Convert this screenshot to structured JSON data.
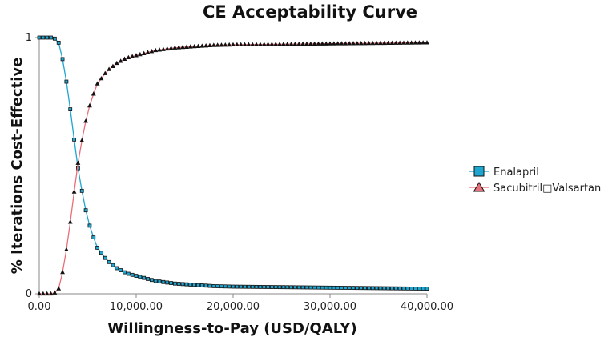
{
  "chart_data": {
    "type": "line",
    "title": "CE Acceptability Curve",
    "xlabel": "Willingness-to-Pay (USD/QALY)",
    "ylabel": "% Iterations Cost-Effective",
    "xlim": [
      0,
      40000
    ],
    "ylim": [
      0,
      1
    ],
    "x_ticks": [
      0,
      10000,
      20000,
      30000,
      40000
    ],
    "x_tick_labels": [
      "0.00",
      "10,000.00",
      "20,000.00",
      "30,000.00",
      "40,000.00"
    ],
    "y_ticks": [
      0,
      1
    ],
    "y_tick_labels": [
      "0",
      "1"
    ],
    "grid": false,
    "legend_position": "right",
    "series": [
      {
        "name": "Enalapril",
        "color": "#1fa6d0",
        "marker": "square",
        "x": [
          0,
          500,
          1000,
          1500,
          2000,
          2500,
          3000,
          3500,
          4000,
          4500,
          5000,
          5500,
          6000,
          7000,
          8000,
          9000,
          10000,
          12000,
          14000,
          16000,
          18000,
          20000,
          25000,
          30000,
          35000,
          40000
        ],
        "y": [
          1.0,
          1.0,
          1.0,
          1.0,
          0.98,
          0.9,
          0.78,
          0.63,
          0.49,
          0.38,
          0.29,
          0.23,
          0.18,
          0.13,
          0.1,
          0.08,
          0.07,
          0.05,
          0.04,
          0.035,
          0.03,
          0.028,
          0.026,
          0.024,
          0.022,
          0.02
        ]
      },
      {
        "name": "Sacubitril□Valsartan",
        "color": "#e8707a",
        "marker": "triangle",
        "x": [
          0,
          500,
          1000,
          1500,
          2000,
          2500,
          3000,
          3500,
          4000,
          4500,
          5000,
          5500,
          6000,
          7000,
          8000,
          9000,
          10000,
          12000,
          14000,
          16000,
          18000,
          20000,
          25000,
          30000,
          35000,
          40000
        ],
        "y": [
          0.0,
          0.0,
          0.0,
          0.0,
          0.02,
          0.1,
          0.22,
          0.37,
          0.51,
          0.62,
          0.71,
          0.77,
          0.82,
          0.87,
          0.9,
          0.92,
          0.93,
          0.95,
          0.96,
          0.965,
          0.97,
          0.972,
          0.974,
          0.976,
          0.978,
          0.98
        ]
      }
    ]
  }
}
